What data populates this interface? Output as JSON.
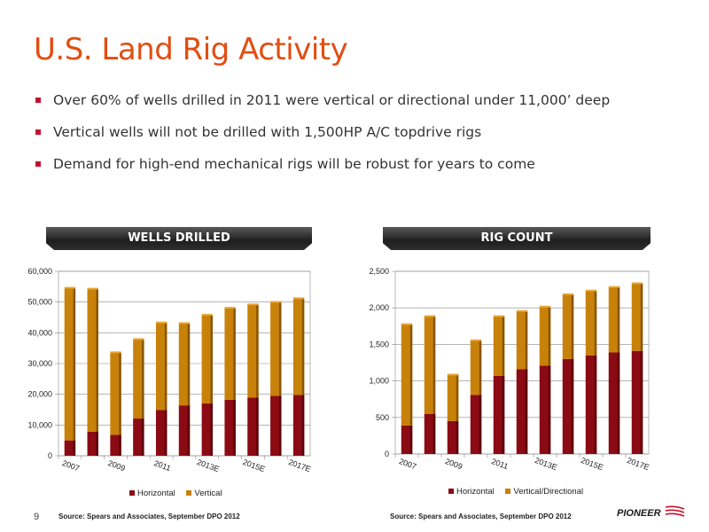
{
  "slide": {
    "title": "U.S. Land Rig Activity",
    "bullets": [
      "Over 60% of wells drilled in 2011 were vertical or directional under 11,000’ deep",
      "Vertical wells will not be drilled with 1,500HP A/C topdrive rigs",
      "Demand for high-end mechanical rigs will be robust for years to come"
    ],
    "page_number": "9",
    "brand": "PIONEER",
    "source_left": "Source:  Spears and Associates, September DPO 2012",
    "source_right": "Source:  Spears and Associates, September DPO 2012"
  },
  "colors": {
    "horizontal": "#8b0a14",
    "vertical": "#c8820a",
    "title": "#e24d12"
  },
  "chart_data": [
    {
      "type": "bar",
      "stacked": true,
      "title": "WELLS DRILLED",
      "categories": [
        "2007",
        "2008",
        "2009",
        "2010",
        "2011",
        "2012",
        "2013E",
        "2014E",
        "2015E",
        "2016E",
        "2017E"
      ],
      "tick_labels": [
        "2007",
        "2009",
        "2011",
        "2013E",
        "2015E",
        "2017E"
      ],
      "series": [
        {
          "name": "Horizontal",
          "values": [
            5000,
            7800,
            6800,
            12100,
            14900,
            16400,
            17000,
            18200,
            18900,
            19500,
            19800
          ]
        },
        {
          "name": "Vertical",
          "values": [
            49500,
            46400,
            26700,
            25700,
            28300,
            26600,
            28700,
            29800,
            30200,
            30400,
            31300
          ]
        }
      ],
      "ylim": [
        0,
        60000
      ],
      "yticks": [
        "0",
        "10,000",
        "20,000",
        "30,000",
        "40,000",
        "50,000",
        "60,000"
      ],
      "legend": "bottom",
      "grid": true
    },
    {
      "type": "bar",
      "stacked": true,
      "title": "RIG COUNT",
      "categories": [
        "2007",
        "2008",
        "2009",
        "2010",
        "2011",
        "2012",
        "2013E",
        "2014E",
        "2015E",
        "2016E",
        "2017E"
      ],
      "tick_labels": [
        "2007",
        "2009",
        "2011",
        "2013E",
        "2015E",
        "2017E"
      ],
      "series": [
        {
          "name": "Horizontal",
          "values": [
            390,
            550,
            450,
            810,
            1070,
            1160,
            1210,
            1300,
            1350,
            1390,
            1410
          ]
        },
        {
          "name": "Vertical/Directional",
          "values": [
            1380,
            1330,
            630,
            740,
            810,
            790,
            800,
            880,
            880,
            890,
            920
          ]
        }
      ],
      "ylim": [
        0,
        2500
      ],
      "yticks": [
        "0",
        "500",
        "1,000",
        "1,500",
        "2,000",
        "2,500"
      ],
      "legend": "bottom",
      "grid": true
    }
  ]
}
